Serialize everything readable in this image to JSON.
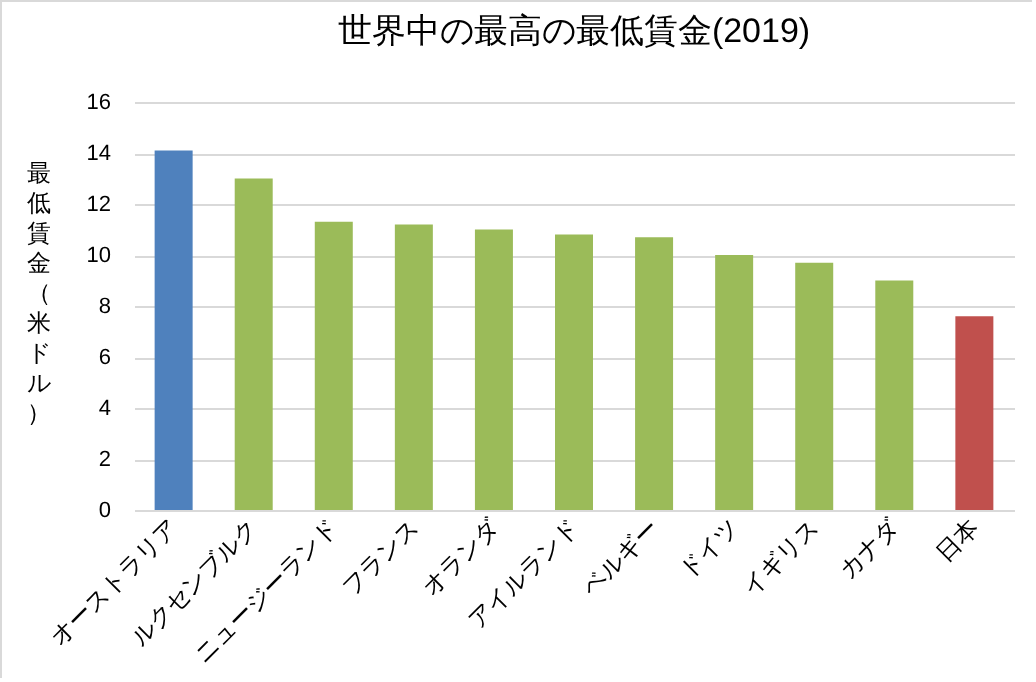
{
  "chart_data": {
    "type": "bar",
    "title": "世界中の最高の最低賃金(2019)",
    "ylabel": "最低賃金（米ドル）",
    "categories": [
      "オーストラリア",
      "ルクセンブルク",
      "ニュージーランド",
      "フランス",
      "オランダ",
      "アイルランド",
      "ベルギー",
      "ドイツ",
      "イギリス",
      "カナダ",
      "日本"
    ],
    "values": [
      14.1,
      13.0,
      11.3,
      11.2,
      11.0,
      10.8,
      10.7,
      10.0,
      9.7,
      9.0,
      7.6
    ],
    "colors": [
      "#4f81bd",
      "#9bbb59",
      "#9bbb59",
      "#9bbb59",
      "#9bbb59",
      "#9bbb59",
      "#9bbb59",
      "#9bbb59",
      "#9bbb59",
      "#9bbb59",
      "#c0504d"
    ],
    "ylim": [
      0,
      16
    ],
    "yticks": [
      0,
      2,
      4,
      6,
      8,
      10,
      12,
      14,
      16
    ],
    "grid": "y"
  }
}
